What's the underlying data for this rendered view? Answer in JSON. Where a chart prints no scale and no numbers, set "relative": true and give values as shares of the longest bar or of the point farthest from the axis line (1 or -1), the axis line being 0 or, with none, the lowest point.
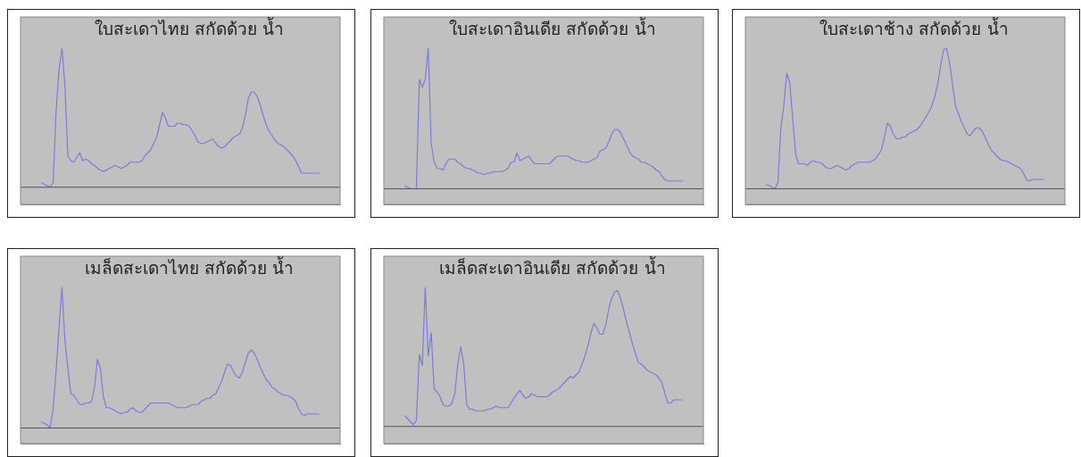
{
  "chart_data": [
    {
      "type": "line",
      "title": "ใบสะเดาไทย สกัดด้วย น้ำ",
      "relative": true,
      "tick_labels": false,
      "grid": false,
      "legend": false,
      "color": "#7b7bdc",
      "ref_lines": [
        {
          "axis": "y",
          "value": 0.11,
          "color": "#555555"
        }
      ],
      "categories": [
        null,
        null,
        null,
        null,
        null,
        null,
        null,
        null,
        null,
        null,
        null,
        null,
        null,
        null,
        null,
        null,
        null,
        null,
        null,
        null,
        null,
        null,
        null,
        null,
        null,
        null,
        null,
        null,
        null,
        null,
        null,
        null,
        null,
        null,
        null,
        null,
        null,
        null,
        null,
        null,
        null,
        null,
        null,
        null,
        null,
        null,
        null,
        null,
        null,
        null,
        null,
        null,
        null,
        null,
        null,
        null,
        null,
        null,
        null,
        null,
        null,
        null,
        null,
        null,
        null,
        null,
        null,
        null,
        null,
        null,
        null,
        null,
        null,
        null,
        null,
        null,
        null,
        null,
        null,
        null,
        null,
        null,
        null,
        null,
        null,
        null,
        null,
        null,
        null,
        null,
        null,
        null,
        null,
        null,
        null,
        null,
        null,
        null,
        null,
        null,
        null,
        null,
        null,
        null,
        null,
        null,
        null,
        null,
        null
      ],
      "values": [
        null,
        null,
        null,
        null,
        null,
        null,
        null,
        0.14,
        0.13,
        0.12,
        0.11,
        0.14,
        0.59,
        0.86,
        1,
        0.76,
        0.31,
        0.28,
        0.27,
        0.3,
        0.33,
        0.28,
        0.29,
        0.28,
        0.26,
        0.25,
        0.23,
        0.22,
        0.21,
        0.22,
        0.23,
        0.24,
        0.25,
        0.24,
        0.23,
        0.24,
        0.25,
        0.27,
        0.27,
        0.27,
        0.27,
        0.28,
        0.31,
        0.33,
        0.35,
        0.39,
        0.43,
        0.51,
        0.59,
        0.55,
        0.5,
        0.5,
        0.5,
        0.52,
        0.52,
        0.51,
        0.51,
        0.5,
        0.47,
        0.44,
        0.4,
        0.39,
        0.39,
        0.4,
        0.41,
        0.42,
        0.39,
        0.37,
        0.36,
        0.37,
        0.39,
        0.41,
        0.43,
        0.44,
        0.45,
        0.49,
        0.57,
        0.68,
        0.72,
        0.72,
        0.69,
        0.64,
        0.57,
        0.51,
        0.47,
        0.44,
        0.41,
        0.39,
        0.38,
        0.37,
        0.35,
        0.33,
        0.31,
        0.28,
        0.24,
        0.2,
        0.2,
        0.2,
        0.2,
        0.2,
        0.2,
        0.2,
        null,
        null,
        null,
        null,
        null,
        null,
        null
      ]
    },
    {
      "type": "line",
      "title": "ใบสะเดาอินเดีย สกัดด้วย น้ำ",
      "relative": true,
      "tick_labels": false,
      "grid": false,
      "legend": false,
      "color": "#7b7bdc",
      "ref_lines": [
        {
          "axis": "y",
          "value": 0.1,
          "color": "#555555"
        }
      ],
      "categories": [
        null,
        null,
        null,
        null,
        null,
        null,
        null,
        null,
        null,
        null,
        null,
        null,
        null,
        null,
        null,
        null,
        null,
        null,
        null,
        null,
        null,
        null,
        null,
        null,
        null,
        null,
        null,
        null,
        null,
        null,
        null,
        null,
        null,
        null,
        null,
        null,
        null,
        null,
        null,
        null,
        null,
        null,
        null,
        null,
        null,
        null,
        null,
        null,
        null,
        null,
        null,
        null,
        null,
        null,
        null,
        null,
        null,
        null,
        null,
        null,
        null,
        null,
        null,
        null,
        null,
        null,
        null,
        null,
        null,
        null,
        null,
        null,
        null,
        null,
        null,
        null,
        null,
        null,
        null,
        null,
        null,
        null,
        null,
        null,
        null,
        null,
        null,
        null,
        null,
        null,
        null,
        null,
        null,
        null,
        null,
        null,
        null,
        null,
        null,
        null,
        null,
        null,
        null,
        null,
        null,
        null,
        null,
        null,
        null
      ],
      "values": [
        null,
        null,
        null,
        null,
        null,
        null,
        null,
        0.12,
        0.11,
        0.1,
        0.1,
        0.1,
        0.8,
        0.75,
        0.8,
        1,
        0.39,
        0.27,
        0.23,
        0.23,
        0.22,
        0.26,
        0.29,
        0.29,
        0.29,
        0.27,
        0.26,
        0.24,
        0.23,
        0.23,
        0.22,
        0.21,
        0.2,
        0.2,
        0.19,
        0.2,
        0.2,
        0.21,
        0.21,
        0.21,
        0.21,
        0.22,
        0.23,
        0.27,
        0.27,
        0.33,
        0.28,
        0.29,
        0.3,
        0.31,
        0.28,
        0.26,
        0.26,
        0.26,
        0.26,
        0.26,
        0.26,
        0.28,
        0.3,
        0.31,
        0.31,
        0.31,
        0.31,
        0.3,
        0.29,
        0.28,
        0.28,
        0.27,
        0.27,
        0.27,
        0.28,
        0.29,
        0.3,
        0.34,
        0.35,
        0.36,
        0.4,
        0.45,
        0.48,
        0.48,
        0.46,
        0.42,
        0.38,
        0.34,
        0.31,
        0.3,
        0.29,
        0.27,
        0.27,
        0.26,
        0.25,
        0.24,
        0.22,
        0.21,
        0.18,
        0.16,
        0.15,
        0.15,
        0.15,
        0.15,
        0.15,
        0.15,
        null,
        null,
        null,
        null,
        null,
        null,
        null
      ]
    },
    {
      "type": "line",
      "title": "ใบสะเดาช้าง สกัดด้วย น้ำ",
      "relative": true,
      "tick_labels": false,
      "grid": false,
      "legend": false,
      "color": "#7b7bdc",
      "ref_lines": [
        {
          "axis": "y",
          "value": 0.1,
          "color": "#555555"
        }
      ],
      "categories": [
        null,
        null,
        null,
        null,
        null,
        null,
        null,
        null,
        null,
        null,
        null,
        null,
        null,
        null,
        null,
        null,
        null,
        null,
        null,
        null,
        null,
        null,
        null,
        null,
        null,
        null,
        null,
        null,
        null,
        null,
        null,
        null,
        null,
        null,
        null,
        null,
        null,
        null,
        null,
        null,
        null,
        null,
        null,
        null,
        null,
        null,
        null,
        null,
        null,
        null,
        null,
        null,
        null,
        null,
        null,
        null,
        null,
        null,
        null,
        null,
        null,
        null,
        null,
        null,
        null,
        null,
        null,
        null,
        null,
        null,
        null,
        null,
        null,
        null,
        null,
        null,
        null,
        null,
        null,
        null,
        null,
        null,
        null,
        null,
        null,
        null,
        null,
        null,
        null,
        null,
        null,
        null,
        null,
        null,
        null,
        null,
        null,
        null,
        null,
        null,
        null,
        null,
        null,
        null,
        null,
        null,
        null,
        null,
        null
      ],
      "values": [
        null,
        null,
        null,
        null,
        null,
        null,
        null,
        0.13,
        0.12,
        0.11,
        0.1,
        0.14,
        0.49,
        0.63,
        0.84,
        0.78,
        0.55,
        0.32,
        0.26,
        0.26,
        0.26,
        0.25,
        0.27,
        0.28,
        0.27,
        0.27,
        0.26,
        0.24,
        0.23,
        0.23,
        0.24,
        0.25,
        0.24,
        0.23,
        0.22,
        0.23,
        0.25,
        0.26,
        0.27,
        0.27,
        0.27,
        0.27,
        0.27,
        0.28,
        0.29,
        0.32,
        0.35,
        0.43,
        0.52,
        0.5,
        0.45,
        0.42,
        0.42,
        0.43,
        0.43,
        0.45,
        0.46,
        0.47,
        0.48,
        0.5,
        0.53,
        0.56,
        0.59,
        0.63,
        0.69,
        0.77,
        0.89,
        0.99,
        1,
        0.91,
        0.77,
        0.63,
        0.58,
        0.53,
        0.49,
        0.45,
        0.44,
        0.47,
        0.49,
        0.49,
        0.47,
        0.43,
        0.39,
        0.35,
        0.33,
        0.31,
        0.29,
        0.28,
        0.28,
        0.27,
        0.26,
        0.25,
        0.24,
        0.23,
        0.2,
        0.16,
        0.15,
        0.16,
        0.16,
        0.16,
        0.16,
        0.16,
        null,
        null,
        null,
        null,
        null,
        null,
        null
      ]
    },
    {
      "type": "line",
      "title": "เมล็ดสะเดาไทย สกัดด้วย น้ำ",
      "relative": true,
      "tick_labels": false,
      "grid": false,
      "legend": false,
      "color": "#7b7bdc",
      "ref_lines": [
        {
          "axis": "y",
          "value": 0.1,
          "color": "#555555"
        }
      ],
      "categories": [
        null,
        null,
        null,
        null,
        null,
        null,
        null,
        null,
        null,
        null,
        null,
        null,
        null,
        null,
        null,
        null,
        null,
        null,
        null,
        null,
        null,
        null,
        null,
        null,
        null,
        null,
        null,
        null,
        null,
        null,
        null,
        null,
        null,
        null,
        null,
        null,
        null,
        null,
        null,
        null,
        null,
        null,
        null,
        null,
        null,
        null,
        null,
        null,
        null,
        null,
        null,
        null,
        null,
        null,
        null,
        null,
        null,
        null,
        null,
        null,
        null,
        null,
        null,
        null,
        null,
        null,
        null,
        null,
        null,
        null,
        null,
        null,
        null,
        null,
        null,
        null,
        null,
        null,
        null,
        null,
        null,
        null,
        null,
        null,
        null,
        null,
        null,
        null,
        null,
        null,
        null,
        null,
        null,
        null,
        null,
        null,
        null,
        null,
        null,
        null,
        null,
        null,
        null,
        null,
        null,
        null,
        null,
        null,
        null
      ],
      "values": [
        null,
        null,
        null,
        null,
        null,
        null,
        null,
        0.14,
        0.13,
        0.12,
        0.1,
        0.22,
        0.46,
        0.74,
        1,
        0.66,
        0.48,
        0.32,
        0.31,
        0.28,
        0.25,
        0.25,
        0.26,
        0.26,
        0.27,
        0.36,
        0.54,
        0.48,
        0.3,
        0.23,
        0.23,
        0.22,
        0.21,
        0.2,
        0.19,
        0.2,
        0.2,
        0.22,
        0.23,
        0.21,
        0.2,
        0.2,
        0.22,
        0.24,
        0.26,
        0.26,
        0.26,
        0.26,
        0.26,
        0.26,
        0.26,
        0.25,
        0.24,
        0.23,
        0.23,
        0.23,
        0.23,
        0.24,
        0.25,
        0.25,
        0.25,
        0.27,
        0.28,
        0.29,
        0.29,
        0.31,
        0.32,
        0.36,
        0.4,
        0.46,
        0.51,
        0.5,
        0.46,
        0.43,
        0.42,
        0.46,
        0.52,
        0.58,
        0.6,
        0.58,
        0.54,
        0.49,
        0.45,
        0.41,
        0.39,
        0.36,
        0.35,
        0.33,
        0.32,
        0.31,
        0.31,
        0.3,
        0.29,
        0.27,
        0.22,
        0.19,
        0.18,
        0.19,
        0.19,
        0.19,
        0.19,
        0.19,
        null,
        null,
        null,
        null,
        null,
        null,
        null
      ]
    },
    {
      "type": "line",
      "title": "เมล็ดสะเดาอินเดีย สกัดด้วย น้ำ",
      "relative": true,
      "tick_labels": false,
      "grid": false,
      "legend": false,
      "color": "#7b7bdc",
      "ref_lines": [
        {
          "axis": "y",
          "value": 0.11,
          "color": "#555555"
        }
      ],
      "categories": [
        null,
        null,
        null,
        null,
        null,
        null,
        null,
        null,
        null,
        null,
        null,
        null,
        null,
        null,
        null,
        null,
        null,
        null,
        null,
        null,
        null,
        null,
        null,
        null,
        null,
        null,
        null,
        null,
        null,
        null,
        null,
        null,
        null,
        null,
        null,
        null,
        null,
        null,
        null,
        null,
        null,
        null,
        null,
        null,
        null,
        null,
        null,
        null,
        null,
        null,
        null,
        null,
        null,
        null,
        null,
        null,
        null,
        null,
        null,
        null,
        null,
        null,
        null,
        null,
        null,
        null,
        null,
        null,
        null,
        null,
        null,
        null,
        null,
        null,
        null,
        null,
        null,
        null,
        null,
        null,
        null,
        null,
        null,
        null,
        null,
        null,
        null,
        null,
        null,
        null,
        null,
        null,
        null,
        null,
        null,
        null,
        null,
        null,
        null,
        null,
        null,
        null,
        null,
        null,
        null,
        null,
        null,
        null,
        null
      ],
      "values": [
        null,
        null,
        null,
        null,
        null,
        null,
        null,
        0.18,
        0.16,
        0.14,
        0.12,
        0.15,
        0.57,
        0.5,
        1,
        0.56,
        0.71,
        0.35,
        0.33,
        0.3,
        0.25,
        0.24,
        0.24,
        0.26,
        0.32,
        0.51,
        0.62,
        0.51,
        0.25,
        0.22,
        0.22,
        0.21,
        0.21,
        0.21,
        0.21,
        0.22,
        0.22,
        0.23,
        0.24,
        0.23,
        0.23,
        0.23,
        0.23,
        0.26,
        0.29,
        0.32,
        0.34,
        0.31,
        0.29,
        0.3,
        0.32,
        0.31,
        0.3,
        0.3,
        0.3,
        0.3,
        0.31,
        0.33,
        0.34,
        0.35,
        0.37,
        0.39,
        0.41,
        0.43,
        0.42,
        0.44,
        0.46,
        0.51,
        0.56,
        0.63,
        0.71,
        0.77,
        0.74,
        0.7,
        0.7,
        0.76,
        0.86,
        0.93,
        0.97,
        0.98,
        0.93,
        0.86,
        0.78,
        0.71,
        0.64,
        0.58,
        0.52,
        0.51,
        0.49,
        0.47,
        0.46,
        0.45,
        0.44,
        0.42,
        0.39,
        0.32,
        0.26,
        0.26,
        0.28,
        0.28,
        0.28,
        0.28,
        null,
        null,
        null,
        null,
        null,
        null,
        null
      ]
    }
  ]
}
